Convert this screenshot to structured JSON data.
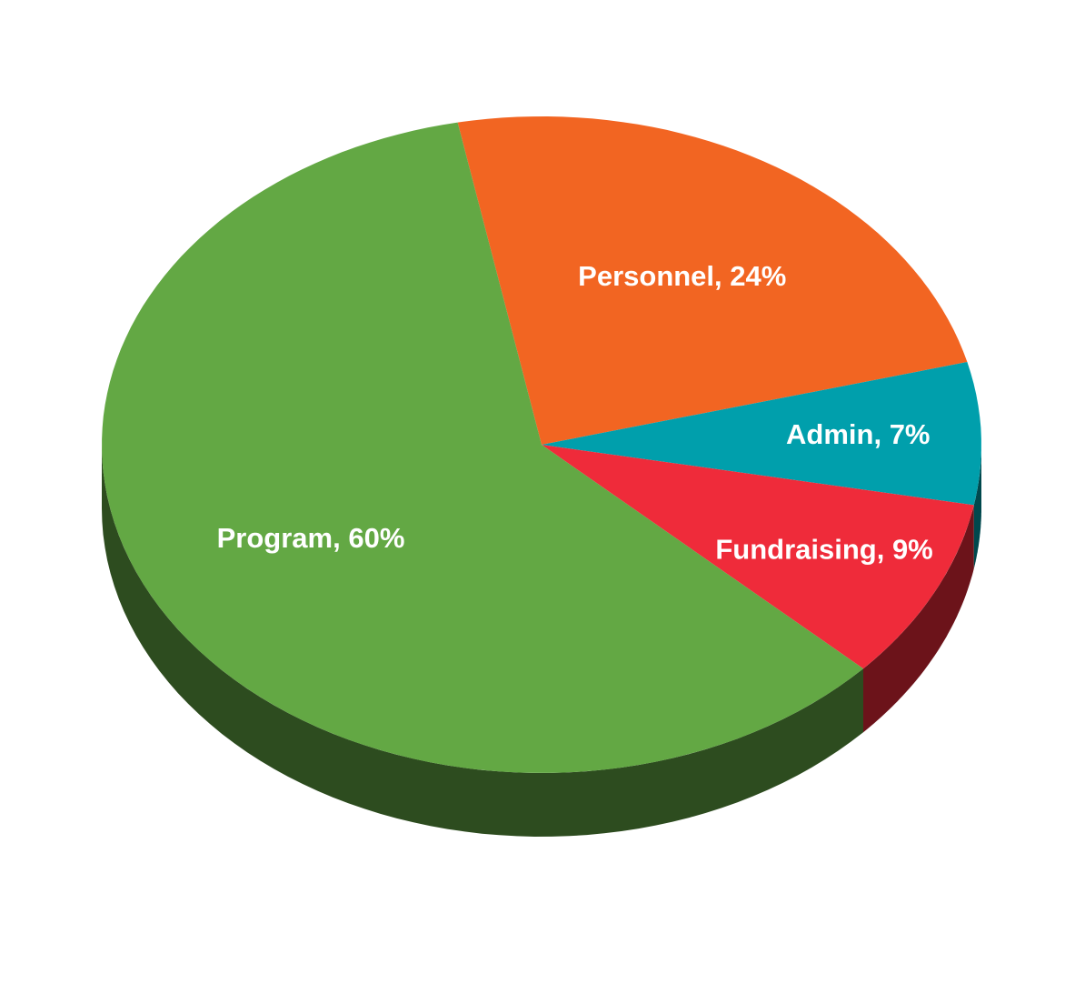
{
  "chart_data": {
    "type": "pie",
    "values": [
      24,
      7,
      9,
      60
    ],
    "value_labels": [
      "Personnel, 24%",
      "Admin, 7%",
      "Fundraising, 9%",
      "Program, 60%"
    ],
    "colors": [
      "#f26522",
      "#009fac",
      "#ef2b3a",
      "#63a844"
    ]
  }
}
